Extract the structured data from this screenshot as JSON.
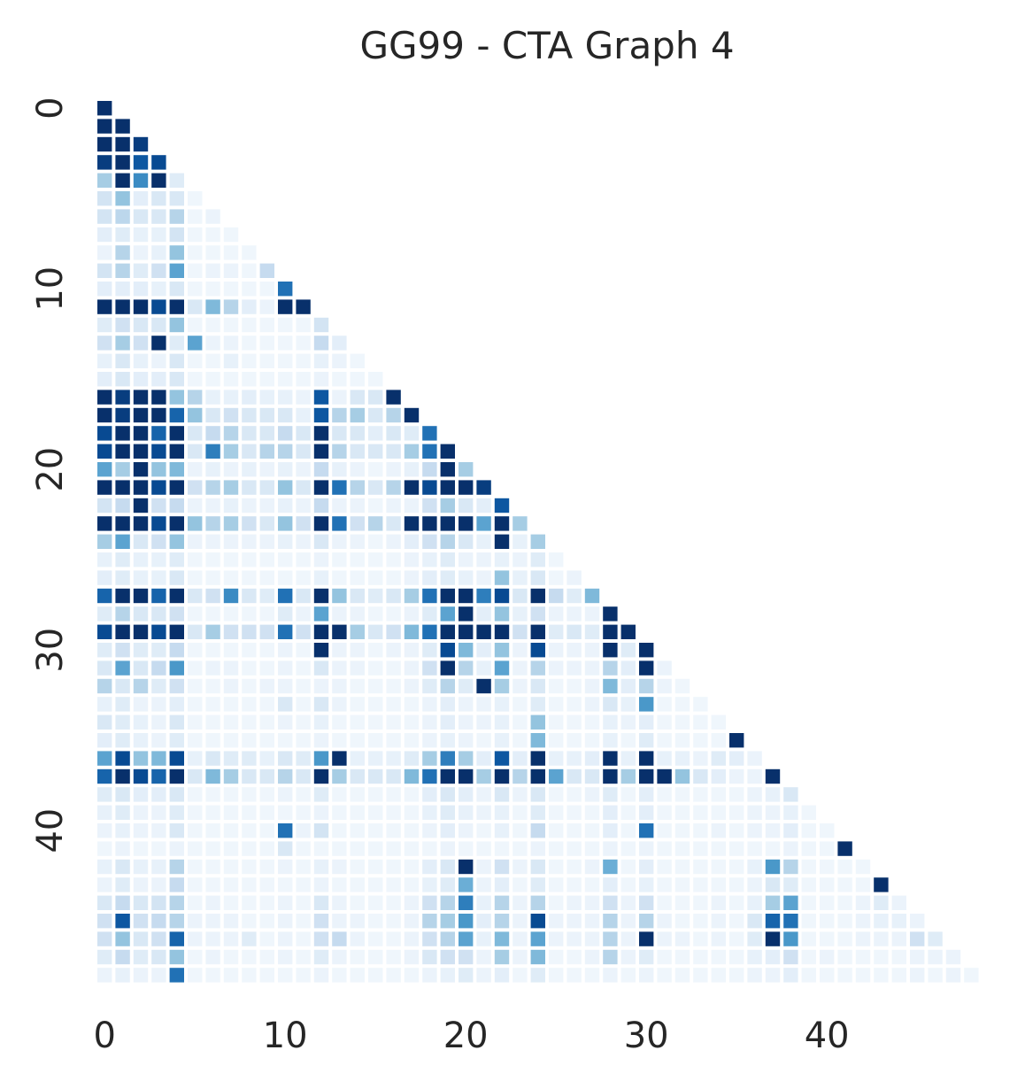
{
  "chart_data": {
    "type": "heatmap",
    "title": "GG99 - CTA Graph 4",
    "shape": "lower-triangular",
    "n": 49,
    "colormap": "Blues",
    "value_range": [
      0,
      1
    ],
    "grid": false,
    "colorbar": false,
    "x_ticks": [
      0,
      10,
      20,
      30,
      40
    ],
    "y_ticks": [
      0,
      10,
      20,
      30,
      40
    ],
    "x_tick_labels": [
      "0",
      "10",
      "20",
      "30",
      "40"
    ],
    "y_tick_labels": [
      "0",
      "10",
      "20",
      "30",
      "40"
    ],
    "rows": [
      [
        1.0
      ],
      [
        1.0,
        1.0
      ],
      [
        1.0,
        1.0,
        0.95
      ],
      [
        0.95,
        1.0,
        0.85,
        0.9
      ],
      [
        0.35,
        1.0,
        0.65,
        1.0,
        0.12
      ],
      [
        0.18,
        0.4,
        0.1,
        0.15,
        0.15,
        0.04
      ],
      [
        0.18,
        0.28,
        0.15,
        0.15,
        0.3,
        0.04,
        0.06
      ],
      [
        0.1,
        0.12,
        0.08,
        0.08,
        0.18,
        0.04,
        0.04,
        0.04
      ],
      [
        0.06,
        0.3,
        0.06,
        0.08,
        0.4,
        0.04,
        0.04,
        0.04,
        0.04
      ],
      [
        0.18,
        0.3,
        0.12,
        0.2,
        0.55,
        0.04,
        0.06,
        0.06,
        0.04,
        0.25
      ],
      [
        0.1,
        0.1,
        0.1,
        0.08,
        0.15,
        0.04,
        0.04,
        0.04,
        0.04,
        0.04,
        0.75
      ],
      [
        1.0,
        1.0,
        1.0,
        0.9,
        1.0,
        0.15,
        0.45,
        0.3,
        0.1,
        0.06,
        1.0,
        1.0
      ],
      [
        0.12,
        0.2,
        0.15,
        0.15,
        0.4,
        0.04,
        0.04,
        0.04,
        0.04,
        0.04,
        0.04,
        0.04,
        0.18
      ],
      [
        0.2,
        0.35,
        0.2,
        1.0,
        0.12,
        0.55,
        0.06,
        0.06,
        0.04,
        0.04,
        0.04,
        0.04,
        0.25,
        0.1
      ],
      [
        0.08,
        0.15,
        0.08,
        0.06,
        0.15,
        0.04,
        0.04,
        0.08,
        0.04,
        0.04,
        0.04,
        0.04,
        0.08,
        0.06,
        0.04
      ],
      [
        0.1,
        0.15,
        0.1,
        0.1,
        0.15,
        0.04,
        0.04,
        0.04,
        0.04,
        0.04,
        0.04,
        0.04,
        0.06,
        0.04,
        0.04,
        0.04
      ],
      [
        1.0,
        0.95,
        1.0,
        1.0,
        0.4,
        0.3,
        0.08,
        0.08,
        0.1,
        0.08,
        0.08,
        0.06,
        0.85,
        0.06,
        0.15,
        0.15,
        1.0
      ],
      [
        1.0,
        0.95,
        1.0,
        1.0,
        0.8,
        0.4,
        0.15,
        0.2,
        0.15,
        0.15,
        0.15,
        0.08,
        0.85,
        0.3,
        0.35,
        0.15,
        0.3,
        1.0
      ],
      [
        0.9,
        1.0,
        1.0,
        0.8,
        1.0,
        0.15,
        0.25,
        0.3,
        0.15,
        0.15,
        0.25,
        0.15,
        1.0,
        0.15,
        0.15,
        0.1,
        0.15,
        0.12,
        0.75
      ],
      [
        0.9,
        1.0,
        1.0,
        0.9,
        1.0,
        0.15,
        0.7,
        0.35,
        0.15,
        0.3,
        0.3,
        0.15,
        1.0,
        0.3,
        0.15,
        0.15,
        0.15,
        0.35,
        0.75,
        1.0
      ],
      [
        0.55,
        0.35,
        1.0,
        0.4,
        0.45,
        0.06,
        0.08,
        0.06,
        0.08,
        0.06,
        0.08,
        0.06,
        0.25,
        0.08,
        0.06,
        0.04,
        0.06,
        0.08,
        0.25,
        1.0,
        0.35
      ],
      [
        1.0,
        1.0,
        1.0,
        0.9,
        1.0,
        0.2,
        0.3,
        0.35,
        0.15,
        0.15,
        0.4,
        0.15,
        1.0,
        0.75,
        0.3,
        0.15,
        0.3,
        1.0,
        0.9,
        1.0,
        1.0,
        0.95
      ],
      [
        0.18,
        0.25,
        1.0,
        0.2,
        0.25,
        0.06,
        0.06,
        0.08,
        0.06,
        0.06,
        0.08,
        0.06,
        0.25,
        0.06,
        0.06,
        0.04,
        0.06,
        0.06,
        0.2,
        0.35,
        0.15,
        0.1,
        0.85
      ],
      [
        1.0,
        1.0,
        1.0,
        0.9,
        1.0,
        0.4,
        0.3,
        0.35,
        0.2,
        0.15,
        0.4,
        0.2,
        1.0,
        0.75,
        0.2,
        0.3,
        0.15,
        1.0,
        1.0,
        1.0,
        1.0,
        0.55,
        1.0,
        0.35
      ],
      [
        0.35,
        0.55,
        0.15,
        0.2,
        0.4,
        0.06,
        0.06,
        0.06,
        0.06,
        0.06,
        0.08,
        0.06,
        0.15,
        0.06,
        0.06,
        0.04,
        0.06,
        0.1,
        0.2,
        0.3,
        0.15,
        0.08,
        1.0,
        0.08,
        0.35
      ],
      [
        0.08,
        0.12,
        0.08,
        0.08,
        0.12,
        0.04,
        0.04,
        0.04,
        0.04,
        0.04,
        0.04,
        0.04,
        0.06,
        0.04,
        0.04,
        0.04,
        0.04,
        0.06,
        0.08,
        0.12,
        0.06,
        0.06,
        0.08,
        0.06,
        0.12,
        0.04
      ],
      [
        0.1,
        0.12,
        0.08,
        0.08,
        0.15,
        0.04,
        0.04,
        0.04,
        0.04,
        0.04,
        0.04,
        0.04,
        0.08,
        0.04,
        0.04,
        0.04,
        0.04,
        0.06,
        0.1,
        0.12,
        0.08,
        0.06,
        0.4,
        0.08,
        0.15,
        0.04,
        0.06
      ],
      [
        0.8,
        1.0,
        1.0,
        0.8,
        1.0,
        0.15,
        0.2,
        0.65,
        0.15,
        0.12,
        0.75,
        0.15,
        1.0,
        0.4,
        0.15,
        0.12,
        0.15,
        0.35,
        0.75,
        1.0,
        1.0,
        0.7,
        0.9,
        0.15,
        1.0,
        0.25,
        0.12,
        0.45
      ],
      [
        0.12,
        0.3,
        0.15,
        0.15,
        0.2,
        0.04,
        0.04,
        0.04,
        0.04,
        0.04,
        0.12,
        0.06,
        0.55,
        0.06,
        0.06,
        0.04,
        0.04,
        0.06,
        0.12,
        0.55,
        1.0,
        0.1,
        0.4,
        0.08,
        0.2,
        0.06,
        0.06,
        0.06,
        1.0
      ],
      [
        0.9,
        1.0,
        1.0,
        0.9,
        1.0,
        0.15,
        0.35,
        0.2,
        0.2,
        0.2,
        0.75,
        0.2,
        1.0,
        1.0,
        0.35,
        0.15,
        0.2,
        0.45,
        0.75,
        1.0,
        1.0,
        1.0,
        1.0,
        0.2,
        1.0,
        0.12,
        0.15,
        0.12,
        1.0,
        1.0
      ],
      [
        0.12,
        0.2,
        0.12,
        0.12,
        0.25,
        0.04,
        0.04,
        0.04,
        0.04,
        0.04,
        0.06,
        0.04,
        1.0,
        0.06,
        0.06,
        0.04,
        0.06,
        0.06,
        0.12,
        0.9,
        0.45,
        0.1,
        0.4,
        0.06,
        0.9,
        0.06,
        0.06,
        0.06,
        1.0,
        0.12,
        1.0
      ],
      [
        0.15,
        0.55,
        0.15,
        0.25,
        0.6,
        0.04,
        0.06,
        0.06,
        0.04,
        0.04,
        0.06,
        0.04,
        0.15,
        0.06,
        0.06,
        0.04,
        0.04,
        0.06,
        0.2,
        1.0,
        0.3,
        0.08,
        0.55,
        0.06,
        0.3,
        0.06,
        0.06,
        0.06,
        0.3,
        0.1,
        1.0,
        0.06
      ],
      [
        0.3,
        0.15,
        0.3,
        0.12,
        0.2,
        0.04,
        0.04,
        0.06,
        0.04,
        0.06,
        0.06,
        0.04,
        0.06,
        0.06,
        0.04,
        0.04,
        0.04,
        0.06,
        0.12,
        0.3,
        0.12,
        1.0,
        0.35,
        0.06,
        0.15,
        0.04,
        0.04,
        0.06,
        0.45,
        0.1,
        0.3,
        0.06,
        0.04
      ],
      [
        0.08,
        0.12,
        0.06,
        0.06,
        0.1,
        0.04,
        0.04,
        0.04,
        0.04,
        0.04,
        0.15,
        0.04,
        0.15,
        0.06,
        0.04,
        0.04,
        0.04,
        0.04,
        0.06,
        0.1,
        0.06,
        0.06,
        0.08,
        0.04,
        0.12,
        0.04,
        0.04,
        0.06,
        0.15,
        0.08,
        0.6,
        0.04,
        0.04,
        0.04
      ],
      [
        0.15,
        0.12,
        0.08,
        0.06,
        0.15,
        0.04,
        0.04,
        0.04,
        0.04,
        0.04,
        0.06,
        0.04,
        0.08,
        0.04,
        0.04,
        0.04,
        0.04,
        0.04,
        0.06,
        0.1,
        0.06,
        0.06,
        0.08,
        0.04,
        0.4,
        0.04,
        0.04,
        0.04,
        0.08,
        0.06,
        0.1,
        0.04,
        0.04,
        0.04,
        0.04
      ],
      [
        0.1,
        0.12,
        0.08,
        0.06,
        0.12,
        0.04,
        0.04,
        0.04,
        0.04,
        0.04,
        0.04,
        0.04,
        0.06,
        0.04,
        0.04,
        0.04,
        0.04,
        0.04,
        0.06,
        0.08,
        0.06,
        0.04,
        0.08,
        0.04,
        0.45,
        0.04,
        0.04,
        0.04,
        0.08,
        0.04,
        0.12,
        0.04,
        0.04,
        0.04,
        0.04,
        1.0
      ],
      [
        0.55,
        0.9,
        0.4,
        0.45,
        0.9,
        0.08,
        0.15,
        0.12,
        0.12,
        0.08,
        0.15,
        0.12,
        0.6,
        1.0,
        0.08,
        0.08,
        0.08,
        0.12,
        0.35,
        0.7,
        0.35,
        0.1,
        0.85,
        0.1,
        1.0,
        0.08,
        0.08,
        0.1,
        1.0,
        0.08,
        1.0,
        0.08,
        0.08,
        0.06,
        0.12,
        0.1,
        0.06
      ],
      [
        0.8,
        1.0,
        0.9,
        0.8,
        1.0,
        0.15,
        0.45,
        0.35,
        0.15,
        0.15,
        0.3,
        0.15,
        1.0,
        0.35,
        0.15,
        0.15,
        0.15,
        0.45,
        0.75,
        1.0,
        1.0,
        0.35,
        1.0,
        0.3,
        1.0,
        0.55,
        0.15,
        0.15,
        1.0,
        0.35,
        1.0,
        1.0,
        0.4,
        0.15,
        0.1,
        0.06,
        0.06,
        1.0
      ],
      [
        0.12,
        0.15,
        0.1,
        0.1,
        0.15,
        0.04,
        0.04,
        0.04,
        0.04,
        0.04,
        0.06,
        0.04,
        0.12,
        0.04,
        0.04,
        0.04,
        0.04,
        0.04,
        0.1,
        0.15,
        0.1,
        0.06,
        0.15,
        0.06,
        0.15,
        0.04,
        0.04,
        0.06,
        0.12,
        0.04,
        0.1,
        0.04,
        0.04,
        0.04,
        0.04,
        0.04,
        0.06,
        0.08,
        0.15
      ],
      [
        0.08,
        0.12,
        0.06,
        0.06,
        0.12,
        0.04,
        0.04,
        0.04,
        0.04,
        0.04,
        0.04,
        0.04,
        0.06,
        0.04,
        0.04,
        0.04,
        0.04,
        0.04,
        0.08,
        0.12,
        0.08,
        0.06,
        0.08,
        0.04,
        0.12,
        0.04,
        0.04,
        0.04,
        0.1,
        0.04,
        0.1,
        0.04,
        0.04,
        0.04,
        0.04,
        0.04,
        0.06,
        0.06,
        0.08,
        0.04
      ],
      [
        0.06,
        0.08,
        0.06,
        0.06,
        0.15,
        0.04,
        0.04,
        0.04,
        0.04,
        0.04,
        0.75,
        0.06,
        0.18,
        0.04,
        0.04,
        0.04,
        0.04,
        0.04,
        0.06,
        0.1,
        0.06,
        0.04,
        0.08,
        0.04,
        0.25,
        0.04,
        0.04,
        0.04,
        0.1,
        0.04,
        0.75,
        0.04,
        0.04,
        0.04,
        0.06,
        0.04,
        0.06,
        0.06,
        0.1,
        0.04,
        0.04
      ],
      [
        0.04,
        0.06,
        0.04,
        0.04,
        0.06,
        0.04,
        0.04,
        0.04,
        0.04,
        0.04,
        0.15,
        0.04,
        0.04,
        0.04,
        0.04,
        0.04,
        0.04,
        0.04,
        0.04,
        0.06,
        0.04,
        0.04,
        0.04,
        0.04,
        0.06,
        0.04,
        0.04,
        0.04,
        0.06,
        0.04,
        0.06,
        0.04,
        0.04,
        0.04,
        0.04,
        0.04,
        0.04,
        0.04,
        0.06,
        0.04,
        0.04,
        1.0
      ],
      [
        0.08,
        0.15,
        0.08,
        0.08,
        0.3,
        0.04,
        0.04,
        0.04,
        0.04,
        0.04,
        0.06,
        0.04,
        0.08,
        0.06,
        0.04,
        0.04,
        0.04,
        0.04,
        0.1,
        0.15,
        1.0,
        0.06,
        0.2,
        0.06,
        0.15,
        0.04,
        0.04,
        0.06,
        0.5,
        0.04,
        0.1,
        0.04,
        0.04,
        0.04,
        0.04,
        0.04,
        0.08,
        0.6,
        0.3,
        0.04,
        0.04,
        0.04,
        0.04
      ],
      [
        0.06,
        0.12,
        0.06,
        0.06,
        0.25,
        0.04,
        0.04,
        0.04,
        0.04,
        0.04,
        0.04,
        0.04,
        0.06,
        0.04,
        0.04,
        0.04,
        0.04,
        0.04,
        0.08,
        0.12,
        0.5,
        0.06,
        0.1,
        0.04,
        0.12,
        0.04,
        0.04,
        0.04,
        0.1,
        0.04,
        0.08,
        0.04,
        0.04,
        0.04,
        0.04,
        0.04,
        0.06,
        0.15,
        0.12,
        0.04,
        0.04,
        0.04,
        0.04,
        1.0
      ],
      [
        0.15,
        0.25,
        0.15,
        0.18,
        0.3,
        0.04,
        0.06,
        0.04,
        0.04,
        0.04,
        0.06,
        0.04,
        0.15,
        0.06,
        0.04,
        0.04,
        0.04,
        0.06,
        0.2,
        0.3,
        0.7,
        0.08,
        0.3,
        0.06,
        0.3,
        0.04,
        0.06,
        0.06,
        0.2,
        0.06,
        0.2,
        0.04,
        0.04,
        0.04,
        0.06,
        0.04,
        0.08,
        0.35,
        0.55,
        0.04,
        0.04,
        0.04,
        0.06,
        0.12,
        0.06
      ],
      [
        0.2,
        0.85,
        0.2,
        0.25,
        0.3,
        0.06,
        0.06,
        0.06,
        0.04,
        0.04,
        0.06,
        0.04,
        0.2,
        0.06,
        0.06,
        0.04,
        0.04,
        0.06,
        0.3,
        0.35,
        0.6,
        0.1,
        0.3,
        0.06,
        0.9,
        0.06,
        0.06,
        0.06,
        0.3,
        0.06,
        0.3,
        0.06,
        0.04,
        0.04,
        0.06,
        0.04,
        0.15,
        0.8,
        0.75,
        0.04,
        0.04,
        0.04,
        0.06,
        0.08,
        0.08,
        0.06
      ],
      [
        0.2,
        0.4,
        0.15,
        0.2,
        0.8,
        0.06,
        0.06,
        0.06,
        0.12,
        0.04,
        0.06,
        0.04,
        0.2,
        0.25,
        0.06,
        0.04,
        0.04,
        0.06,
        0.2,
        0.3,
        0.55,
        0.08,
        0.45,
        0.06,
        0.55,
        0.06,
        0.06,
        0.06,
        0.3,
        0.06,
        1.0,
        0.06,
        0.06,
        0.04,
        0.06,
        0.04,
        0.12,
        1.0,
        0.6,
        0.04,
        0.04,
        0.04,
        0.06,
        0.06,
        0.06,
        0.2,
        0.12
      ],
      [
        0.12,
        0.25,
        0.12,
        0.15,
        0.4,
        0.04,
        0.06,
        0.04,
        0.04,
        0.04,
        0.06,
        0.04,
        0.12,
        0.06,
        0.04,
        0.04,
        0.04,
        0.06,
        0.15,
        0.2,
        0.2,
        0.06,
        0.35,
        0.06,
        0.45,
        0.04,
        0.04,
        0.06,
        0.3,
        0.06,
        0.12,
        0.04,
        0.04,
        0.04,
        0.04,
        0.04,
        0.08,
        0.1,
        0.2,
        0.04,
        0.06,
        0.04,
        0.04,
        0.04,
        0.04,
        0.06,
        0.06,
        0.06
      ],
      [
        0.06,
        0.08,
        0.06,
        0.06,
        0.75,
        0.04,
        0.04,
        0.04,
        0.04,
        0.04,
        0.04,
        0.04,
        0.06,
        0.04,
        0.04,
        0.04,
        0.04,
        0.04,
        0.06,
        0.08,
        0.12,
        0.06,
        0.1,
        0.04,
        0.12,
        0.04,
        0.04,
        0.04,
        0.06,
        0.04,
        0.06,
        0.04,
        0.04,
        0.04,
        0.04,
        0.04,
        0.06,
        0.06,
        0.1,
        0.04,
        0.04,
        0.04,
        0.04,
        0.04,
        0.04,
        0.06,
        0.04,
        0.06,
        0.04
      ]
    ]
  }
}
